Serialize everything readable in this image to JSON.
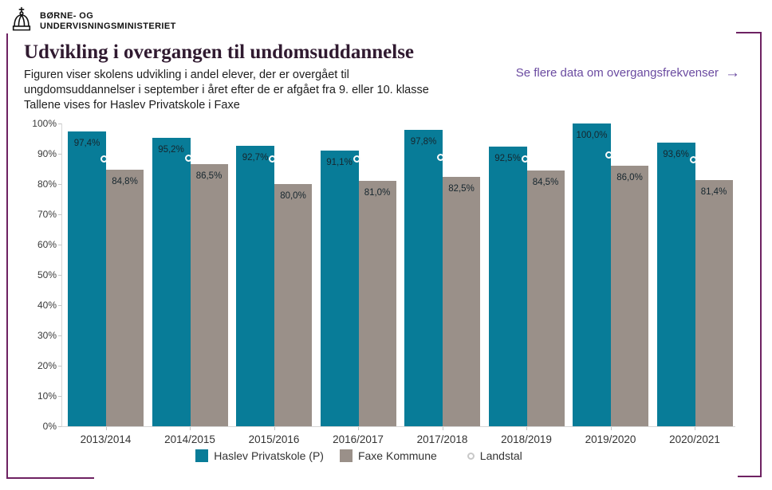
{
  "logo": {
    "line1": "BØRNE- OG",
    "line2": "UNDERVISNINGSMINISTERIET"
  },
  "header": {
    "title": "Udvikling i overgangen til undomsuddannelse",
    "subtitle_line1": "Figuren viser skolens udvikling i andel elever, der er overgået til",
    "subtitle_line2": "ungdomsuddannelser i september i året efter de er afgået fra 9. eller 10. klasse",
    "subtitle_line3": "Tallene vises for Haslev Privatskole i Faxe",
    "link_label": "Se flere data om overgangsfrekvenser",
    "link_arrow": "→"
  },
  "colors": {
    "school_bar": "#087c98",
    "municipality_bar": "#9a9089",
    "frame": "#6e2262",
    "link": "#6a4aa0",
    "title_text": "#301a30"
  },
  "chart_data": {
    "type": "bar",
    "title": "Udvikling i overgangen til undomsuddannelse",
    "categories": [
      "2013/2014",
      "2014/2015",
      "2015/2016",
      "2016/2017",
      "2017/2018",
      "2018/2019",
      "2019/2020",
      "2020/2021"
    ],
    "series": [
      {
        "name": "Haslev Privatskole (P)",
        "color": "#087c98",
        "values": [
          97.4,
          95.2,
          92.7,
          91.1,
          97.8,
          92.5,
          100.0,
          93.6
        ],
        "labels": [
          "97,4%",
          "95,2%",
          "92,7%",
          "91,1%",
          "97,8%",
          "92,5%",
          "100,0%",
          "93,6%"
        ]
      },
      {
        "name": "Faxe Kommune",
        "color": "#9a9089",
        "values": [
          84.8,
          86.5,
          80.0,
          81.0,
          82.5,
          84.5,
          86.0,
          81.4
        ],
        "labels": [
          "84,8%",
          "86,5%",
          "80,0%",
          "81,0%",
          "82,5%",
          "84,5%",
          "86,0%",
          "81,4%"
        ]
      },
      {
        "name": "Landstal",
        "marker": "circle",
        "values_estimated_from_pixels": true,
        "values": [
          87.7,
          88.0,
          87.6,
          87.6,
          88.1,
          87.7,
          89.0,
          87.3
        ]
      }
    ],
    "ylim": [
      0,
      100
    ],
    "y_ticks": [
      "0%",
      "10%",
      "20%",
      "30%",
      "40%",
      "50%",
      "60%",
      "70%",
      "80%",
      "90%",
      "100%"
    ],
    "grid": false,
    "legend_position": "bottom",
    "data_labels_shown_for": [
      "Haslev Privatskole (P)",
      "Faxe Kommune"
    ]
  }
}
